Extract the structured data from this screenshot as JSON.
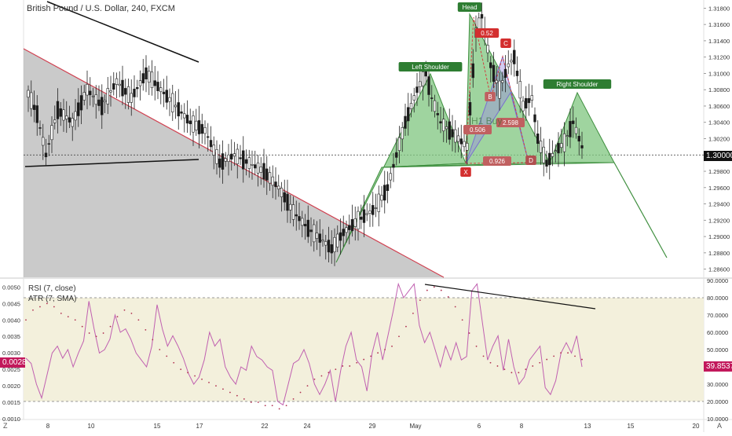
{
  "header": {
    "title": "British Pound / U.S. Dollar, 240, FXCM"
  },
  "indicators": {
    "rsi_label": "RSI (7, close)",
    "atr_label": "ATR (7, SMA)"
  },
  "badges": {
    "price": "1.30000",
    "atr": "0.0028",
    "rsi": "39.8537"
  },
  "corner": {
    "left": "Z",
    "right": "A"
  },
  "colors": {
    "up": "#4a4a4a",
    "down": "#1a1a1a",
    "pattern_fill": "#7fc57f",
    "pattern_stroke": "#3f8f3f",
    "label_green": "#2e7d32",
    "label_red": "#d32f2f",
    "rsi": "#c060b0",
    "band": "#f3f0dc",
    "wedge": "#b8b8b8",
    "trend_red": "#d04050",
    "bat_purple": "#9b8fe0"
  },
  "chart_data": [
    {
      "type": "candlestick",
      "title": "British Pound / U.S. Dollar, 240, FXCM",
      "x_ticks": [
        "8",
        "10",
        "15",
        "17",
        "22",
        "24",
        "29",
        "May",
        "6",
        "8",
        "13",
        "15",
        "20"
      ],
      "y_ticks": [
        "1.31800",
        "1.31600",
        "1.31400",
        "1.31200",
        "1.31000",
        "1.30800",
        "1.30600",
        "1.30400",
        "1.30200",
        "1.30000",
        "1.29800",
        "1.29600",
        "1.29400",
        "1.29200",
        "1.29000",
        "1.28800",
        "1.28600"
      ],
      "ylim": [
        1.285,
        1.319
      ],
      "reference_price": 1.3,
      "anchors": [
        {
          "i": 0,
          "p": 1.3075
        },
        {
          "i": 3,
          "p": 1.305
        },
        {
          "i": 6,
          "p": 1.3
        },
        {
          "i": 10,
          "p": 1.3055
        },
        {
          "i": 15,
          "p": 1.304
        },
        {
          "i": 20,
          "p": 1.308
        },
        {
          "i": 25,
          "p": 1.306
        },
        {
          "i": 30,
          "p": 1.309
        },
        {
          "i": 35,
          "p": 1.307
        },
        {
          "i": 40,
          "p": 1.31
        },
        {
          "i": 45,
          "p": 1.308
        },
        {
          "i": 50,
          "p": 1.306
        },
        {
          "i": 55,
          "p": 1.304
        },
        {
          "i": 60,
          "p": 1.303
        },
        {
          "i": 65,
          "p": 1.299
        },
        {
          "i": 70,
          "p": 1.3
        },
        {
          "i": 75,
          "p": 1.299
        },
        {
          "i": 80,
          "p": 1.298
        },
        {
          "i": 85,
          "p": 1.296
        },
        {
          "i": 90,
          "p": 1.293
        },
        {
          "i": 95,
          "p": 1.291
        },
        {
          "i": 100,
          "p": 1.2895
        },
        {
          "i": 103,
          "p": 1.2885
        },
        {
          "i": 107,
          "p": 1.2905
        },
        {
          "i": 112,
          "p": 1.292
        },
        {
          "i": 118,
          "p": 1.2935
        },
        {
          "i": 122,
          "p": 1.296
        },
        {
          "i": 125,
          "p": 1.3
        },
        {
          "i": 128,
          "p": 1.304
        },
        {
          "i": 132,
          "p": 1.308
        },
        {
          "i": 135,
          "p": 1.31
        },
        {
          "i": 137,
          "p": 1.307
        },
        {
          "i": 140,
          "p": 1.304
        },
        {
          "i": 143,
          "p": 1.303
        },
        {
          "i": 146,
          "p": 1.302
        },
        {
          "i": 149,
          "p": 1.301
        },
        {
          "i": 152,
          "p": 1.315
        },
        {
          "i": 154,
          "p": 1.317
        },
        {
          "i": 157,
          "p": 1.311
        },
        {
          "i": 160,
          "p": 1.308
        },
        {
          "i": 163,
          "p": 1.311
        },
        {
          "i": 165,
          "p": 1.312
        },
        {
          "i": 168,
          "p": 1.306
        },
        {
          "i": 171,
          "p": 1.307
        },
        {
          "i": 173,
          "p": 1.302
        },
        {
          "i": 176,
          "p": 1.299
        },
        {
          "i": 179,
          "p": 1.3005
        },
        {
          "i": 182,
          "p": 1.3015
        },
        {
          "i": 185,
          "p": 1.304
        },
        {
          "i": 188,
          "p": 1.301
        }
      ],
      "candle_count": 189,
      "annotations": {
        "pattern_labels": [
          "Left Shoulder",
          "Head",
          "Right Shoulder"
        ],
        "harmonic_points": [
          "X",
          "C",
          "D",
          "B"
        ],
        "ratios": [
          "0.52",
          "0.506",
          "2.598",
          "0.926"
        ],
        "pattern_name": "H1 Buy"
      }
    },
    {
      "type": "line",
      "series": [
        {
          "name": "RSI (7, close)",
          "values": [
            45,
            42,
            30,
            22,
            35,
            48,
            52,
            45,
            50,
            40,
            48,
            55,
            78,
            62,
            48,
            50,
            56,
            70,
            60,
            62,
            56,
            48,
            44,
            40,
            52,
            76,
            62,
            52,
            58,
            52,
            45,
            36,
            30,
            34,
            44,
            60,
            52,
            56,
            40,
            34,
            30,
            40,
            38,
            52,
            46,
            44,
            40,
            38,
            20,
            18,
            30,
            42,
            44,
            50,
            42,
            30,
            24,
            30,
            38,
            20,
            38,
            52,
            60,
            44,
            40,
            26,
            48,
            60,
            44,
            58,
            72,
            88,
            80,
            84,
            88,
            64,
            54,
            60,
            50,
            40,
            52,
            44,
            54,
            44,
            46,
            84,
            88,
            66,
            44,
            52,
            58,
            38,
            56,
            40,
            30,
            34,
            44,
            48,
            52,
            28,
            24,
            32,
            48,
            54,
            48,
            58,
            40
          ]
        }
      ],
      "ylim": [
        10,
        90
      ],
      "y_ticks": [
        "90.0000",
        "80.0000",
        "70.0000",
        "60.0000",
        "50.0000",
        "40.0000",
        "30.0000",
        "20.0000",
        "10.0000"
      ]
    },
    {
      "type": "scatter",
      "series": [
        {
          "name": "ATR (7, SMA)",
          "values": [
            0.004,
            0.0043,
            0.0044,
            0.0045,
            0.0044,
            0.0042,
            0.0041,
            0.004,
            0.0038,
            0.0036,
            0.0035,
            0.0036,
            0.0038,
            0.0041,
            0.0043,
            0.0042,
            0.004,
            0.0037,
            0.0034,
            0.0031,
            0.0029,
            0.0027,
            0.0025,
            0.0024,
            0.0023,
            0.0022,
            0.0021,
            0.002,
            0.0019,
            0.0018,
            0.0017,
            0.0016,
            0.0015,
            0.0015,
            0.0014,
            0.0014,
            0.0013,
            0.0014,
            0.0016,
            0.0018,
            0.002,
            0.0022,
            0.0023,
            0.0024,
            0.0025,
            0.0026,
            0.0026,
            0.0027,
            0.0028,
            0.0029,
            0.003,
            0.0031,
            0.0032,
            0.0035,
            0.0038,
            0.0042,
            0.0046,
            0.0049,
            0.005,
            0.0049,
            0.0047,
            0.0044,
            0.004,
            0.0036,
            0.0032,
            0.0029,
            0.0027,
            0.0026,
            0.0025,
            0.0024,
            0.0024,
            0.0025,
            0.0026,
            0.0027,
            0.0028,
            0.0029,
            0.003,
            0.003,
            0.0029,
            0.0028
          ]
        }
      ],
      "ylim": [
        0.001,
        0.0052
      ],
      "y_ticks": [
        "0.0050",
        "0.0045",
        "0.0040",
        "0.0035",
        "0.0030",
        "0.0025",
        "0.0020",
        "0.0015",
        "0.0010"
      ]
    }
  ]
}
